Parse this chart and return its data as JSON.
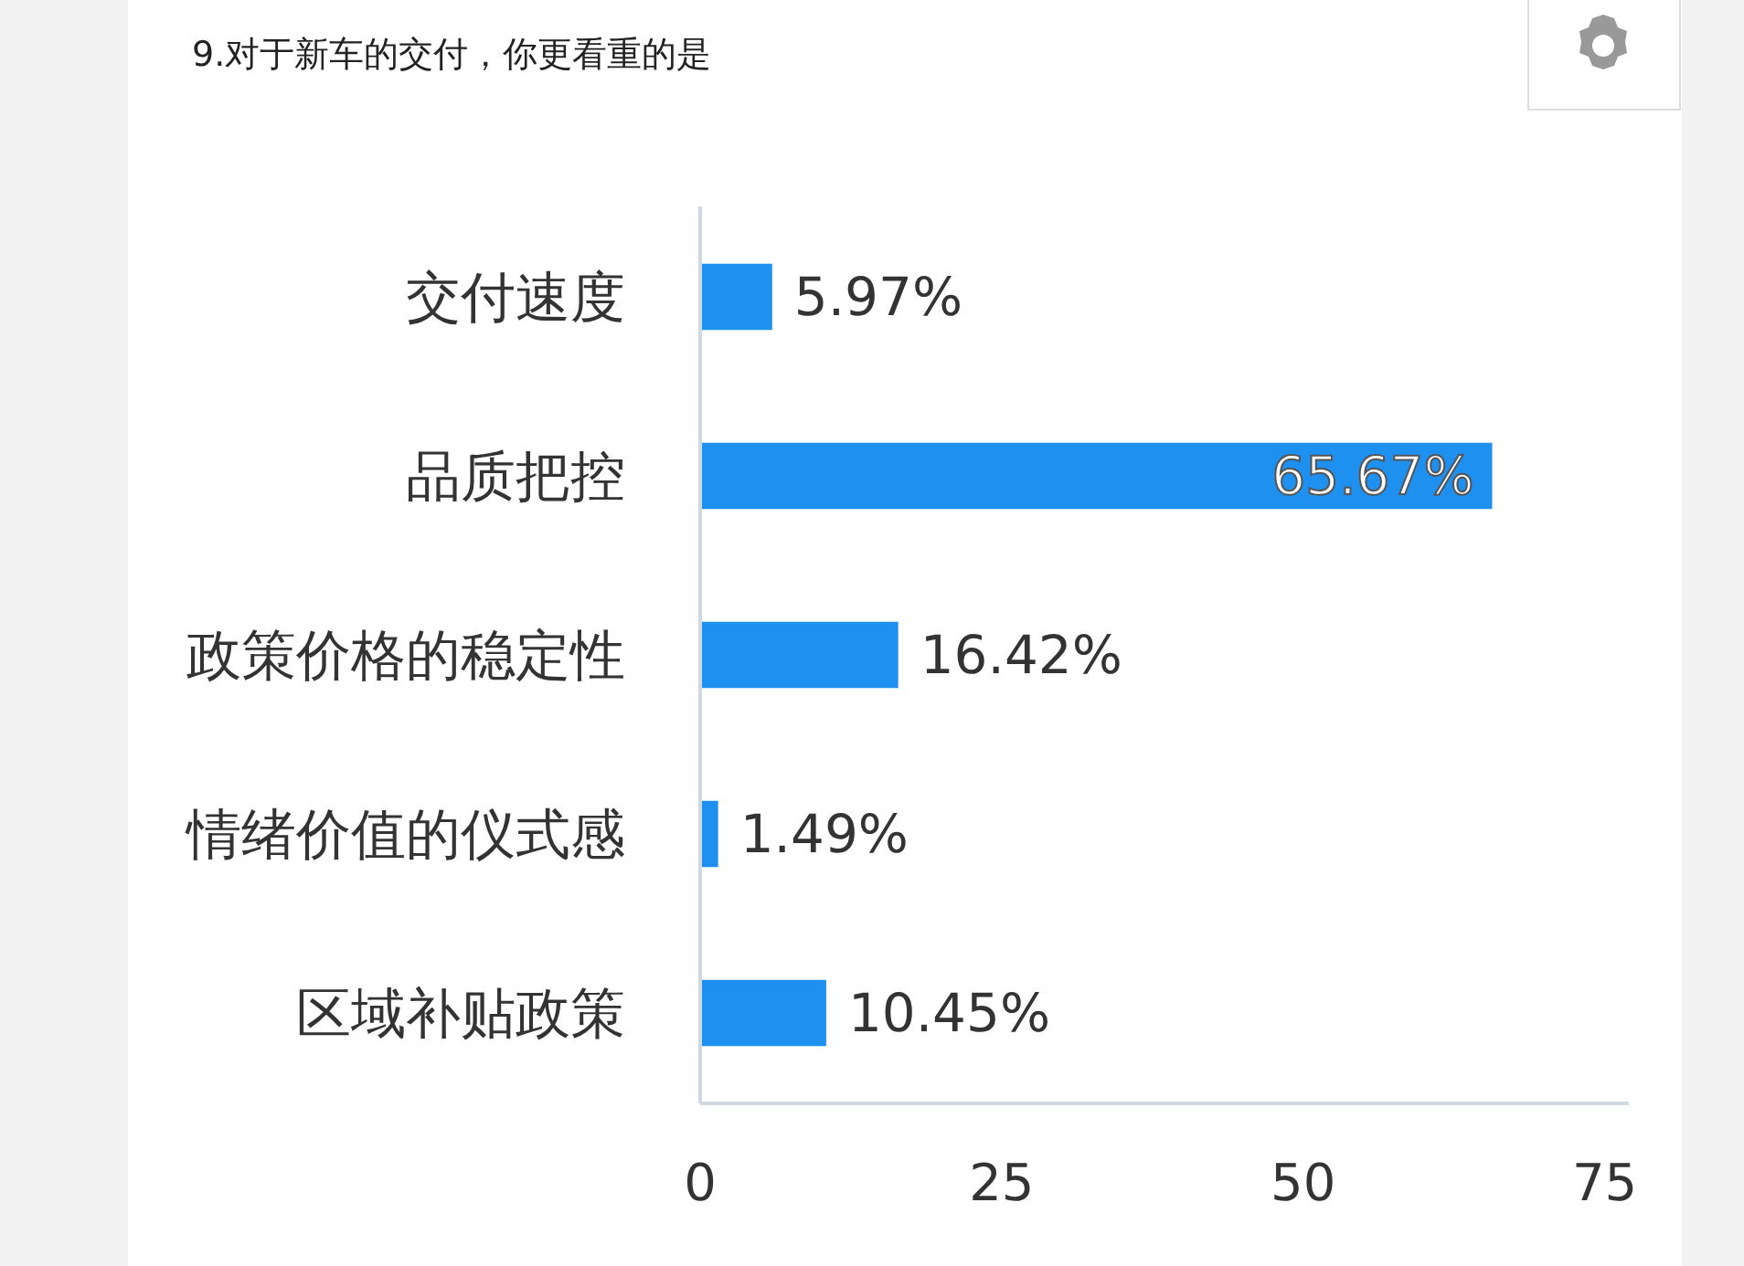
{
  "chart_data": {
    "type": "bar",
    "orientation": "horizontal",
    "title": "9.对于新车的交付，你更看重的是",
    "categories": [
      "交付速度",
      "品质把控",
      "政策价格的稳定性",
      "情绪价值的仪式感",
      "区域补贴政策"
    ],
    "values": [
      5.97,
      65.67,
      16.42,
      1.49,
      10.45
    ],
    "color": "#1e90f0",
    "value_labels": [
      "5.97%",
      "65.67%",
      "16.42%",
      "1.49%",
      "10.45%"
    ],
    "xlim": [
      0,
      77
    ],
    "xticks": [
      0,
      25,
      50,
      75
    ],
    "grid": false
  }
}
